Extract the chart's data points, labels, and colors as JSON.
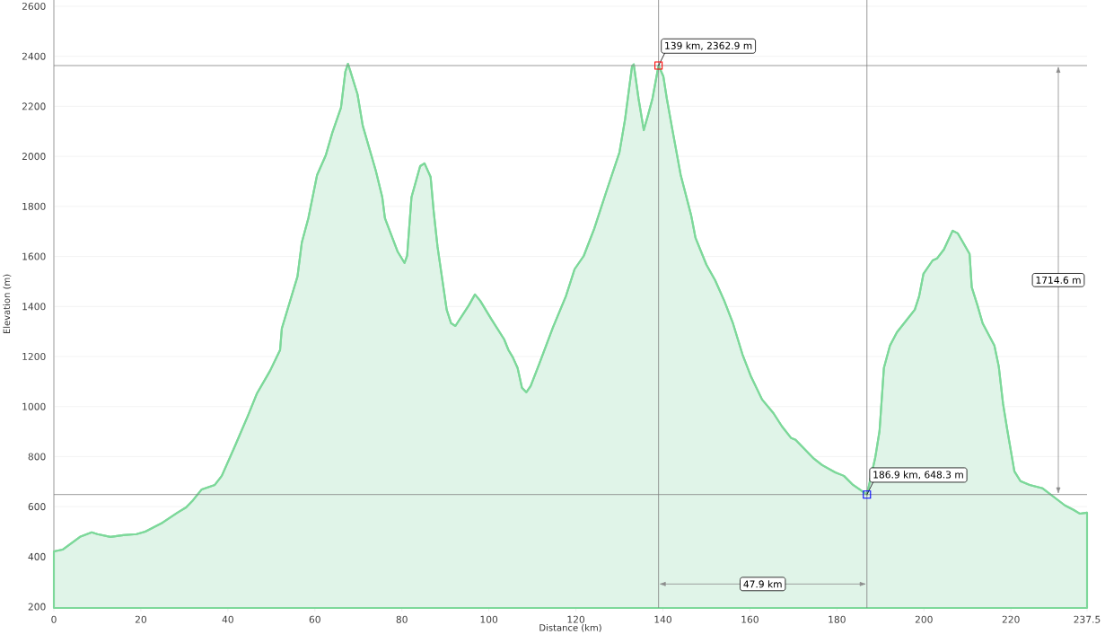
{
  "chart_data": {
    "type": "area",
    "xlabel": "Distance (km)",
    "ylabel": "Elevation (m)",
    "xlim": [
      0,
      237.5
    ],
    "ylim": [
      195,
      2625
    ],
    "xticks": [
      0,
      20,
      40,
      60,
      80,
      100,
      120,
      140,
      160,
      180,
      200,
      220,
      237.5
    ],
    "yticks": [
      200,
      400,
      600,
      800,
      1000,
      1200,
      1400,
      1600,
      1800,
      2000,
      2200,
      2400,
      2600
    ],
    "grid": "y",
    "series": [
      {
        "color": "#7dd89a",
        "x": [
          0,
          2,
          6,
          8.7,
          10,
          13,
          16,
          19,
          21,
          25,
          28.4,
          30.4,
          32,
          34,
          37,
          38.6,
          41.6,
          44.7,
          46.7,
          49.7,
          52,
          52.4,
          56,
          57,
          58.5,
          60.5,
          62.5,
          64,
          66,
          67,
          67.6,
          68.2,
          69.8,
          71,
          74,
          75.5,
          76.1,
          79,
          80.6,
          81.2,
          82.2,
          84.2,
          85.2,
          86.6,
          87.3,
          88.2,
          90.3,
          91.3,
          92.3,
          95.4,
          96.8,
          98,
          100.5,
          103.5,
          104.5,
          105.5,
          106.6,
          107.6,
          108.6,
          109.6,
          111.6,
          114.7,
          117.7,
          119.7,
          121.8,
          124.2,
          126.9,
          130,
          131.3,
          132.9,
          133.3,
          134.4,
          135.6,
          136.6,
          137.6,
          139,
          140.1,
          140.9,
          142.2,
          144.1,
          146.5,
          147.5,
          150,
          152,
          154.1,
          156.1,
          158.3,
          160.3,
          162.8,
          165.4,
          167.4,
          169.5,
          170.5,
          172.5,
          174.5,
          176.6,
          179.6,
          181.6,
          183.7,
          186.9,
          188.8,
          189.8,
          190.8,
          192.2,
          193.8,
          197.9,
          198.9,
          199.9,
          202,
          203,
          204.6,
          206.6,
          207.8,
          209,
          210.5,
          211,
          212.3,
          213.5,
          216.2,
          217.2,
          218.2,
          219.2,
          220.8,
          222.2,
          224.3,
          227.3,
          229.7,
          232.4,
          234.4,
          235.8,
          237.5
        ],
        "values": [
          421,
          428,
          479,
          497,
          490,
          479,
          486,
          490,
          500,
          536,
          576,
          597,
          626,
          669,
          687,
          723,
          841,
          967,
          1053,
          1143,
          1226,
          1312,
          1520,
          1656,
          1753,
          1925,
          2004,
          2094,
          2195,
          2338,
          2370,
          2338,
          2248,
          2123,
          1943,
          1836,
          1753,
          1620,
          1574,
          1602,
          1836,
          1961,
          1972,
          1918,
          1782,
          1638,
          1387,
          1333,
          1322,
          1405,
          1448,
          1423,
          1351,
          1269,
          1226,
          1197,
          1154,
          1075,
          1057,
          1082,
          1172,
          1315,
          1441,
          1549,
          1602,
          1710,
          1854,
          2015,
          2148,
          2360,
          2368,
          2231,
          2105,
          2166,
          2231,
          2362.9,
          2320,
          2231,
          2105,
          1925,
          1764,
          1674,
          1567,
          1505,
          1423,
          1333,
          1208,
          1118,
          1028,
          974,
          920,
          874,
          867,
          831,
          795,
          766,
          737,
          723,
          687,
          648.3,
          795,
          903,
          1154,
          1244,
          1297,
          1387,
          1441,
          1531,
          1584,
          1592,
          1628,
          1703,
          1692,
          1656,
          1610,
          1477,
          1405,
          1333,
          1244,
          1161,
          1010,
          903,
          741,
          702,
          687,
          673,
          641,
          605,
          587,
          572,
          576
        ]
      },
      {
        "type": "scatter",
        "marker": "square",
        "color": "#ff0000",
        "x": [
          139
        ],
        "values": [
          2362.9
        ]
      },
      {
        "type": "scatter",
        "marker": "square",
        "color": "#0000ff",
        "x": [
          186.9
        ],
        "values": [
          648.3
        ]
      }
    ],
    "ref_lines": [
      {
        "axis": "x",
        "value": 139,
        "color": "#808080"
      },
      {
        "axis": "x",
        "value": 186.9,
        "color": "#808080"
      },
      {
        "axis": "y",
        "value": 2362.9,
        "color": "#808080"
      },
      {
        "axis": "y",
        "value": 648.3,
        "color": "#808080"
      }
    ],
    "annotations": [
      {
        "text": "139 km, 2362.9 m",
        "x": 139,
        "y": 2362.9
      },
      {
        "text": "186.9 km, 648.3 m",
        "x": 186.9,
        "y": 648.3
      },
      "47.9 km",
      "1714.6 m"
    ]
  }
}
